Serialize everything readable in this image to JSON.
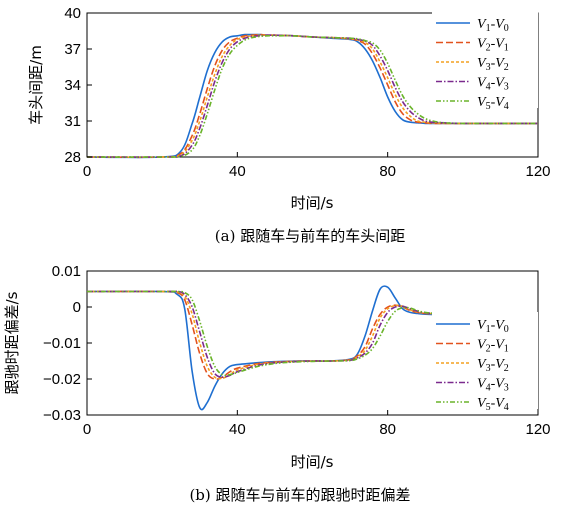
{
  "chart_data": [
    {
      "type": "line",
      "caption": "(a)  跟随车与前车的车头间距",
      "xlabel": "时间/s",
      "ylabel": "车头间距/m",
      "xlim": [
        0,
        120
      ],
      "ylim": [
        28,
        40
      ],
      "xticks": [
        "0",
        "40",
        "80",
        "120"
      ],
      "yticks": [
        "28",
        "31",
        "34",
        "37",
        "40"
      ],
      "legend_position": "top-right",
      "x": [
        0,
        20,
        25,
        28,
        30,
        32,
        34,
        36,
        38,
        40,
        42,
        44,
        46,
        48,
        50,
        55,
        60,
        65,
        70,
        72,
        74,
        76,
        78,
        80,
        82,
        84,
        86,
        88,
        90,
        92,
        95,
        100,
        110,
        120
      ],
      "series": [
        {
          "name": "V1-V0",
          "color": "#1f6fd0",
          "dash": "",
          "values": [
            28.0,
            28.0,
            28.5,
            30.8,
            33.0,
            35.2,
            36.7,
            37.6,
            38.0,
            38.1,
            38.2,
            38.2,
            38.2,
            38.15,
            38.15,
            38.1,
            38.0,
            37.9,
            37.8,
            37.6,
            37.0,
            36.0,
            34.6,
            33.0,
            31.8,
            31.1,
            30.9,
            30.85,
            30.8,
            30.8,
            30.8,
            30.8,
            30.8,
            30.8
          ]
        },
        {
          "name": "V2-V1",
          "color": "#e2521e",
          "dash": "7,3",
          "values": [
            28.0,
            28.0,
            28.3,
            29.8,
            31.6,
            33.7,
            35.6,
            36.9,
            37.6,
            37.9,
            38.1,
            38.15,
            38.2,
            38.15,
            38.15,
            38.1,
            38.0,
            37.95,
            37.85,
            37.7,
            37.4,
            36.6,
            35.4,
            34.0,
            32.6,
            31.6,
            31.1,
            30.9,
            30.85,
            30.8,
            30.8,
            30.8,
            30.8,
            30.8
          ]
        },
        {
          "name": "V3-V2",
          "color": "#f4a020",
          "dash": "3,2",
          "values": [
            28.0,
            28.0,
            28.2,
            29.4,
            31.0,
            33.0,
            34.9,
            36.4,
            37.3,
            37.8,
            38.0,
            38.1,
            38.15,
            38.15,
            38.15,
            38.1,
            38.0,
            37.95,
            37.85,
            37.75,
            37.55,
            37.0,
            35.9,
            34.6,
            33.2,
            32.1,
            31.4,
            31.0,
            30.9,
            30.85,
            30.8,
            30.8,
            30.8,
            30.8
          ]
        },
        {
          "name": "V4-V3",
          "color": "#7b2a8e",
          "dash": "6,2,1.5,2",
          "values": [
            28.0,
            28.0,
            28.1,
            29.0,
            30.4,
            32.3,
            34.3,
            35.9,
            37.0,
            37.6,
            37.9,
            38.05,
            38.1,
            38.15,
            38.15,
            38.1,
            38.0,
            37.95,
            37.9,
            37.8,
            37.65,
            37.3,
            36.4,
            35.2,
            33.8,
            32.6,
            31.8,
            31.3,
            31.0,
            30.9,
            30.85,
            30.8,
            30.8,
            30.8
          ]
        },
        {
          "name": "V5-V4",
          "color": "#6ab42a",
          "dash": "5,2,1.5,2,1.5,2",
          "values": [
            28.0,
            28.0,
            28.05,
            28.6,
            29.8,
            31.6,
            33.6,
            35.4,
            36.6,
            37.3,
            37.75,
            37.95,
            38.05,
            38.1,
            38.1,
            38.1,
            38.0,
            37.95,
            37.9,
            37.85,
            37.7,
            37.5,
            36.9,
            35.8,
            34.4,
            33.1,
            32.2,
            31.6,
            31.2,
            31.0,
            30.85,
            30.8,
            30.8,
            30.8
          ]
        }
      ]
    },
    {
      "type": "line",
      "caption": "(b)  跟随车与前车的跟驰时距偏差",
      "xlabel": "时间/s",
      "ylabel": "跟驰时距偏差/s",
      "xlim": [
        0,
        120
      ],
      "ylim": [
        -0.03,
        0.01
      ],
      "xticks": [
        "0",
        "40",
        "80",
        "120"
      ],
      "yticks": [
        "−0.03",
        "−0.02",
        "−0.01",
        "0",
        "0.01"
      ],
      "legend_position": "bottom-right",
      "x": [
        0,
        20,
        24,
        26,
        28,
        30,
        32,
        34,
        36,
        38,
        40,
        45,
        50,
        55,
        60,
        65,
        70,
        72,
        74,
        76,
        78,
        80,
        82,
        84,
        86,
        88,
        90,
        95,
        100,
        110,
        120
      ],
      "series": [
        {
          "name": "V1-V0",
          "color": "#1f6fd0",
          "dash": "",
          "values": [
            0.0043,
            0.0043,
            0.0035,
            -0.0005,
            -0.018,
            -0.028,
            -0.0265,
            -0.022,
            -0.0185,
            -0.0165,
            -0.016,
            -0.0155,
            -0.0152,
            -0.015,
            -0.015,
            -0.015,
            -0.0145,
            -0.013,
            -0.008,
            -0.001,
            0.005,
            0.0055,
            0.0025,
            -0.0005,
            -0.0015,
            -0.0018,
            -0.002,
            -0.0022,
            -0.0023,
            -0.0023,
            -0.0023
          ]
        },
        {
          "name": "V2-V1",
          "color": "#e2521e",
          "dash": "7,3",
          "values": [
            0.0043,
            0.0043,
            0.004,
            0.002,
            -0.005,
            -0.013,
            -0.0185,
            -0.02,
            -0.0195,
            -0.018,
            -0.017,
            -0.0158,
            -0.0153,
            -0.0151,
            -0.015,
            -0.015,
            -0.0146,
            -0.0135,
            -0.011,
            -0.006,
            -0.002,
            0.0,
            0.0005,
            0.0,
            -0.001,
            -0.0015,
            -0.0018,
            -0.002,
            -0.0022,
            -0.0023,
            -0.0023
          ]
        },
        {
          "name": "V3-V2",
          "color": "#f4a020",
          "dash": "3,2",
          "values": [
            0.0043,
            0.0043,
            0.0042,
            0.003,
            -0.002,
            -0.01,
            -0.0165,
            -0.0195,
            -0.0198,
            -0.0188,
            -0.0175,
            -0.016,
            -0.0154,
            -0.0151,
            -0.015,
            -0.015,
            -0.0147,
            -0.0138,
            -0.012,
            -0.008,
            -0.003,
            -0.0005,
            0.0004,
            0.0002,
            -0.0008,
            -0.0014,
            -0.0017,
            -0.002,
            -0.0022,
            -0.0023,
            -0.0023
          ]
        },
        {
          "name": "V4-V3",
          "color": "#7b2a8e",
          "dash": "6,2,1.5,2",
          "values": [
            0.0043,
            0.0043,
            0.0043,
            0.0035,
            0.0,
            -0.007,
            -0.014,
            -0.0185,
            -0.0195,
            -0.019,
            -0.018,
            -0.0163,
            -0.0155,
            -0.0152,
            -0.015,
            -0.015,
            -0.0148,
            -0.0141,
            -0.0128,
            -0.01,
            -0.005,
            -0.0015,
            0.0,
            0.0002,
            -0.0005,
            -0.0012,
            -0.0016,
            -0.002,
            -0.0022,
            -0.0023,
            -0.0023
          ]
        },
        {
          "name": "V5-V4",
          "color": "#6ab42a",
          "dash": "5,2,1.5,2,1.5,2",
          "values": [
            0.0043,
            0.0043,
            0.0043,
            0.004,
            0.002,
            -0.004,
            -0.011,
            -0.0165,
            -0.0188,
            -0.0188,
            -0.0182,
            -0.0166,
            -0.0157,
            -0.0153,
            -0.0151,
            -0.015,
            -0.0149,
            -0.0144,
            -0.0134,
            -0.0115,
            -0.008,
            -0.004,
            -0.0012,
            -0.0002,
            -0.0003,
            -0.001,
            -0.0015,
            -0.002,
            -0.0022,
            -0.0023,
            -0.0023
          ]
        }
      ]
    }
  ]
}
